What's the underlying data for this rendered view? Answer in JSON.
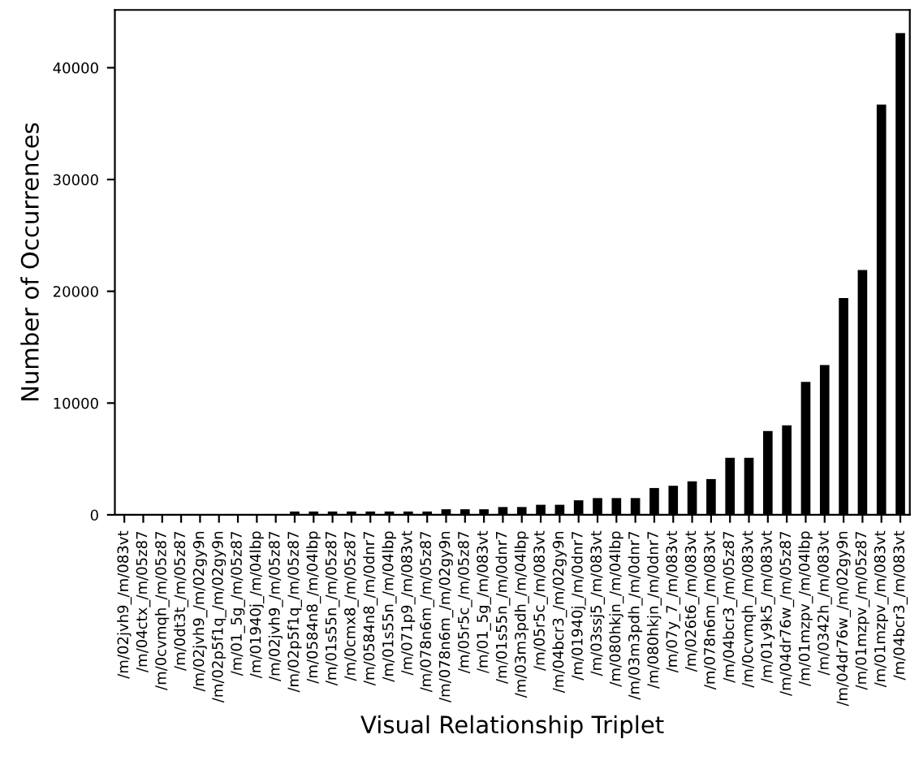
{
  "chart_data": {
    "type": "bar",
    "xlabel": "Visual Relationship Triplet",
    "ylabel": "Number of Occurrences",
    "categories": [
      "/m/02jvh9_/m/083vt",
      "/m/04ctx_/m/05z87",
      "/m/0cvmqh_/m/05z87",
      "/m/0dt3t_/m/05z87",
      "/m/02jvh9_/m/02gy9n",
      "/m/02p5f1q_/m/02gy9n",
      "/m/01_5g_/m/05z87",
      "/m/01940j_/m/04lbp",
      "/m/02jvh9_/m/05z87",
      "/m/02p5f1q_/m/05z87",
      "/m/0584n8_/m/04lbp",
      "/m/01s55n_/m/05z87",
      "/m/0cmx8_/m/05z87",
      "/m/0584n8_/m/0dnr7",
      "/m/01s55n_/m/04lbp",
      "/m/071p9_/m/083vt",
      "/m/078n6m_/m/05z87",
      "/m/078n6m_/m/02gy9n",
      "/m/05r5c_/m/05z87",
      "/m/01_5g_/m/083vt",
      "/m/01s55n_/m/0dnr7",
      "/m/03m3pdh_/m/04lbp",
      "/m/05r5c_/m/083vt",
      "/m/04bcr3_/m/02gy9n",
      "/m/01940j_/m/0dnr7",
      "/m/03ssj5_/m/083vt",
      "/m/080hkjn_/m/04lbp",
      "/m/03m3pdh_/m/0dnr7",
      "/m/080hkjn_/m/0dnr7",
      "/m/07y_7_/m/083vt",
      "/m/026t6_/m/083vt",
      "/m/078n6m_/m/083vt",
      "/m/04bcr3_/m/05z87",
      "/m/0cvmqh_/m/083vt",
      "/m/01y9k5_/m/083vt",
      "/m/04dr76w_/m/05z87",
      "/m/01mzpv_/m/04lbp",
      "/m/0342h_/m/083vt",
      "/m/04dr76w_/m/02gy9n",
      "/m/01mzpv_/m/05z87",
      "/m/01mzpv_/m/083vt",
      "/m/04bcr3_/m/083vt"
    ],
    "values": [
      null,
      null,
      null,
      null,
      null,
      null,
      null,
      null,
      null,
      300,
      300,
      300,
      300,
      300,
      300,
      300,
      300,
      500,
      500,
      500,
      700,
      700,
      900,
      900,
      1300,
      1500,
      1500,
      1500,
      2400,
      2600,
      3000,
      3200,
      5100,
      5100,
      7500,
      8000,
      11900,
      13400,
      19400,
      21900,
      36700,
      43100
    ],
    "color": "#000000",
    "ylim": [
      0,
      45170
    ],
    "yticks": [
      0,
      10000,
      20000,
      30000,
      40000
    ],
    "grid": false
  }
}
